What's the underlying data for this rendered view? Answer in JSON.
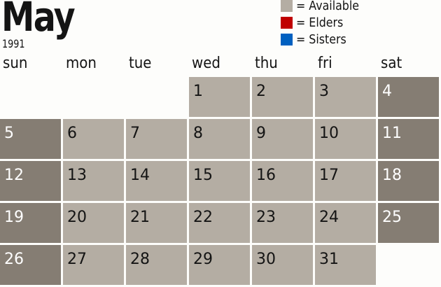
{
  "title": {
    "month": "May",
    "year": "1991"
  },
  "legend": [
    {
      "label": "= Available",
      "color": "#b4ada3"
    },
    {
      "label": "= Elders",
      "color": "#c00000"
    },
    {
      "label": "= Sisters",
      "color": "#0060c0"
    }
  ],
  "weekdays": [
    "sun",
    "mon",
    "tue",
    "wed",
    "thu",
    "fri",
    "sat"
  ],
  "colors": {
    "available": "#b4ada3",
    "weekend": "#857d73"
  },
  "first_weekday_index": 3,
  "days": [
    "1",
    "2",
    "3",
    "4",
    "5",
    "6",
    "7",
    "8",
    "9",
    "10",
    "11",
    "12",
    "13",
    "14",
    "15",
    "16",
    "17",
    "18",
    "19",
    "20",
    "21",
    "22",
    "23",
    "24",
    "25",
    "26",
    "27",
    "28",
    "29",
    "30",
    "31"
  ]
}
